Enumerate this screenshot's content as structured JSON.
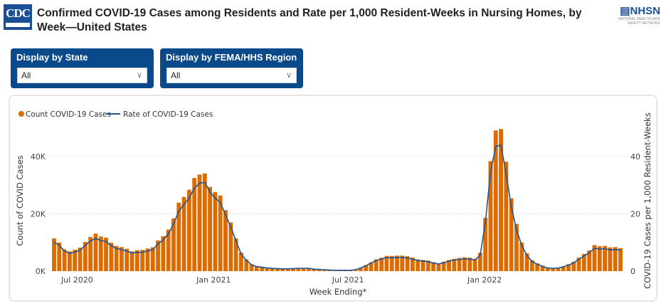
{
  "header": {
    "title": "Confirmed COVID-19 Cases among Residents and Rate per 1,000 Resident-Weeks in Nursing Homes, by Week—United States",
    "logo_left": "CDC",
    "logo_right": "NHSN",
    "logo_right_sub": "NATIONAL HEALTHCARE SAFETY NETWORK"
  },
  "filters": [
    {
      "label": "Display by State",
      "value": "All"
    },
    {
      "label": "Display by FEMA/HHS Region",
      "value": "All"
    }
  ],
  "colors": {
    "bars": "#dc6b00",
    "line": "#1f5596",
    "filter_bg": "#0b4a8a"
  },
  "chart_data": {
    "type": "bar+line",
    "legend": [
      {
        "name": "Count COVID-19 Cases",
        "marker": "dot"
      },
      {
        "name": "Rate of COVID-19 Cases",
        "marker": "line"
      }
    ],
    "legend_position": "top-left",
    "xlabel": "Week Ending*",
    "ylabel": "Count of COVID Cases",
    "y2label": "COVID-19 Cases per 1,000 Resident-Weeks",
    "ylim": [
      0,
      50000
    ],
    "y2lim": [
      0,
      50
    ],
    "yticks": [
      {
        "v": 0,
        "t": "0K"
      },
      {
        "v": 20000,
        "t": "20K"
      },
      {
        "v": 40000,
        "t": "40K"
      }
    ],
    "y2ticks": [
      {
        "v": 0,
        "t": "0"
      },
      {
        "v": 20,
        "t": "20"
      },
      {
        "v": 40,
        "t": "40"
      }
    ],
    "xticks": [
      {
        "d": "2020-07-01",
        "t": "Jul 2020"
      },
      {
        "d": "2021-01-01",
        "t": "Jan 2021"
      },
      {
        "d": "2021-07-01",
        "t": "Jul 2021"
      },
      {
        "d": "2022-01-01",
        "t": "Jan 2022"
      }
    ],
    "grid": "horizontal dotted",
    "x": [
      "2020-05-31",
      "2020-06-07",
      "2020-06-14",
      "2020-06-21",
      "2020-06-28",
      "2020-07-05",
      "2020-07-12",
      "2020-07-19",
      "2020-07-26",
      "2020-08-02",
      "2020-08-09",
      "2020-08-16",
      "2020-08-23",
      "2020-08-30",
      "2020-09-06",
      "2020-09-13",
      "2020-09-20",
      "2020-09-27",
      "2020-10-04",
      "2020-10-11",
      "2020-10-18",
      "2020-10-25",
      "2020-11-01",
      "2020-11-08",
      "2020-11-15",
      "2020-11-22",
      "2020-11-29",
      "2020-12-06",
      "2020-12-13",
      "2020-12-20",
      "2020-12-27",
      "2021-01-03",
      "2021-01-10",
      "2021-01-17",
      "2021-01-24",
      "2021-01-31",
      "2021-02-07",
      "2021-02-14",
      "2021-02-21",
      "2021-02-28",
      "2021-03-07",
      "2021-03-14",
      "2021-03-21",
      "2021-03-28",
      "2021-04-04",
      "2021-04-11",
      "2021-04-18",
      "2021-04-25",
      "2021-05-02",
      "2021-05-09",
      "2021-05-16",
      "2021-05-23",
      "2021-05-30",
      "2021-06-06",
      "2021-06-13",
      "2021-06-20",
      "2021-06-27",
      "2021-07-04",
      "2021-07-11",
      "2021-07-18",
      "2021-07-25",
      "2021-08-01",
      "2021-08-08",
      "2021-08-15",
      "2021-08-22",
      "2021-08-29",
      "2021-09-05",
      "2021-09-12",
      "2021-09-19",
      "2021-09-26",
      "2021-10-03",
      "2021-10-10",
      "2021-10-17",
      "2021-10-24",
      "2021-10-31",
      "2021-11-07",
      "2021-11-14",
      "2021-11-21",
      "2021-11-28",
      "2021-12-05",
      "2021-12-12",
      "2021-12-19",
      "2021-12-26",
      "2022-01-02",
      "2022-01-09",
      "2022-01-16",
      "2022-01-23",
      "2022-01-30",
      "2022-02-06",
      "2022-02-13",
      "2022-02-20",
      "2022-02-27",
      "2022-03-06",
      "2022-03-13",
      "2022-03-20",
      "2022-03-27",
      "2022-04-03",
      "2022-04-10",
      "2022-04-17",
      "2022-04-24",
      "2022-05-01",
      "2022-05-08",
      "2022-05-15",
      "2022-05-22",
      "2022-05-29",
      "2022-06-05",
      "2022-06-12",
      "2022-06-19",
      "2022-06-26",
      "2022-07-03"
    ],
    "series": [
      {
        "name": "Count COVID-19 Cases",
        "kind": "bar",
        "axis": "left",
        "values": [
          11400,
          10000,
          7600,
          6900,
          7500,
          8200,
          10200,
          11900,
          13100,
          12100,
          11700,
          9900,
          8800,
          8400,
          7800,
          6900,
          7300,
          7400,
          7900,
          8300,
          10700,
          12200,
          14500,
          18400,
          23900,
          25900,
          28400,
          32500,
          33700,
          34100,
          29400,
          27600,
          26400,
          21300,
          17000,
          11400,
          6500,
          4100,
          2400,
          1700,
          1500,
          1200,
          1100,
          900,
          900,
          800,
          1000,
          1100,
          1100,
          1100,
          700,
          700,
          500,
          400,
          300,
          300,
          300,
          300,
          500,
          1200,
          2100,
          3100,
          4100,
          4700,
          5300,
          5300,
          5400,
          5400,
          5200,
          4700,
          4100,
          3900,
          3700,
          3100,
          2700,
          3300,
          3900,
          4300,
          4600,
          4800,
          4700,
          4300,
          6400,
          18600,
          38400,
          49100,
          49600,
          38200,
          25400,
          16500,
          10000,
          6200,
          3800,
          2700,
          1900,
          1200,
          1100,
          1200,
          1700,
          2400,
          3300,
          4700,
          6000,
          7200,
          9100,
          8700,
          8800,
          8300,
          8400,
          8000
        ]
      },
      {
        "name": "Rate of COVID-19 Cases",
        "kind": "line",
        "axis": "right",
        "values": [
          10.1,
          9.0,
          7.0,
          6.2,
          6.6,
          7.3,
          9.0,
          10.5,
          11.4,
          10.7,
          10.3,
          8.9,
          7.9,
          7.5,
          7.0,
          6.3,
          6.5,
          6.6,
          7.0,
          7.5,
          9.5,
          10.9,
          13.0,
          16.5,
          21.0,
          23.3,
          25.5,
          29.0,
          30.7,
          31.0,
          27.5,
          25.5,
          24.0,
          19.5,
          15.5,
          10.5,
          6.0,
          3.8,
          2.2,
          1.6,
          1.4,
          1.1,
          1.0,
          0.9,
          0.8,
          0.8,
          0.9,
          1.0,
          1.0,
          1.0,
          0.7,
          0.6,
          0.5,
          0.4,
          0.3,
          0.3,
          0.3,
          0.3,
          0.5,
          1.1,
          1.9,
          2.8,
          3.7,
          4.2,
          4.7,
          4.7,
          4.8,
          4.8,
          4.6,
          4.2,
          3.7,
          3.5,
          3.3,
          2.8,
          2.5,
          2.9,
          3.5,
          3.9,
          4.1,
          4.3,
          4.2,
          3.9,
          5.5,
          17.0,
          34.5,
          43.5,
          44.0,
          34.0,
          22.5,
          14.5,
          9.0,
          5.5,
          3.4,
          2.4,
          1.7,
          1.1,
          1.0,
          1.1,
          1.5,
          2.1,
          2.9,
          4.2,
          5.3,
          6.4,
          8.0,
          7.7,
          7.8,
          7.4,
          7.5,
          7.4
        ]
      }
    ]
  }
}
